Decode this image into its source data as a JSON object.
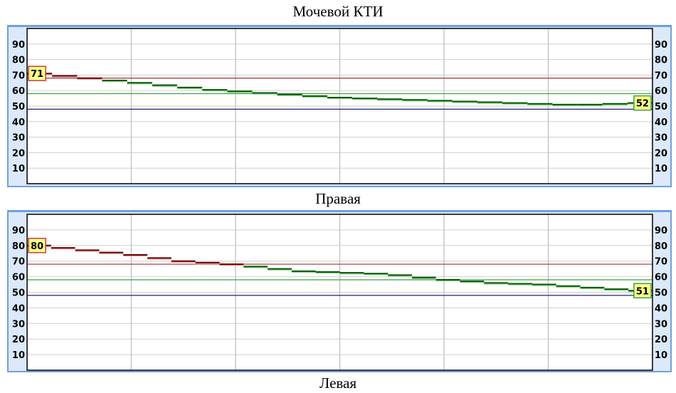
{
  "labels": {
    "title": "Мочевой КТИ",
    "right_label": "Правая",
    "left_label": "Левая"
  },
  "colors": {
    "high_line": "#a03030",
    "mid_line": "#3aa03a",
    "low_line": "#202080",
    "series_above": "#6a0000",
    "series_below": "#005a00",
    "badge_bg": "#ffff88",
    "panel_bg": "#dce9fb",
    "panel_border": "#6fa0dc"
  },
  "chart_data": [
    {
      "type": "line",
      "name": "Правая",
      "ylim": [
        0,
        100
      ],
      "yticks": [
        10,
        20,
        30,
        40,
        50,
        60,
        70,
        80,
        90
      ],
      "x_divisions": 6,
      "grid": true,
      "reference_lines": [
        68,
        58,
        48
      ],
      "values": [
        71,
        69.5,
        68,
        66.5,
        65,
        63.5,
        62,
        60.5,
        59.5,
        58.5,
        57.5,
        56.5,
        55.5,
        55,
        54.5,
        54,
        53.5,
        53,
        52.5,
        52,
        51.5,
        51,
        51,
        51.5,
        52
      ],
      "start_label": "71",
      "end_label": "52"
    },
    {
      "type": "line",
      "name": "Левая",
      "ylim": [
        0,
        100
      ],
      "yticks": [
        10,
        20,
        30,
        40,
        50,
        60,
        70,
        80,
        90
      ],
      "x_divisions": 6,
      "grid": true,
      "reference_lines": [
        68,
        58,
        48
      ],
      "values": [
        80,
        78.5,
        77,
        75.5,
        74,
        72,
        70,
        69,
        68,
        66.5,
        65,
        63.5,
        63,
        62.5,
        62,
        61,
        59.5,
        58,
        57,
        56,
        55.5,
        55,
        54,
        53,
        52,
        51
      ],
      "start_label": "80",
      "end_label": "51"
    }
  ]
}
